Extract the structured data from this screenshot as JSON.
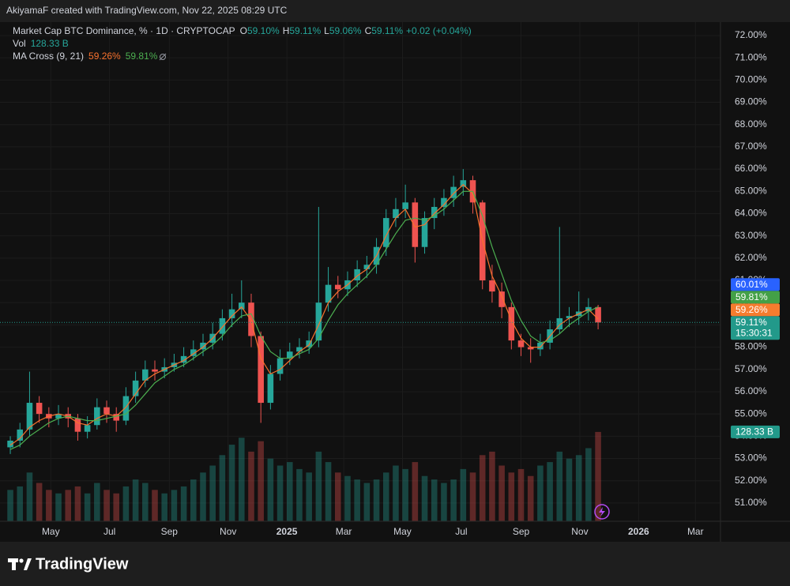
{
  "header": {
    "text": "AkiyamaF created with TradingView.com, Nov 22, 2025 08:29 UTC"
  },
  "chart_data": {
    "type": "candlestick",
    "legend": {
      "symbol": "Market Cap BTC Dominance, % · 1D · CRYPTOCAP",
      "ohlc": [
        {
          "key": "O",
          "value": "59.10%"
        },
        {
          "key": "H",
          "value": "59.11%"
        },
        {
          "key": "L",
          "value": "59.06%"
        },
        {
          "key": "C",
          "value": "59.11%"
        }
      ],
      "change": "+0.02 (+0.04%)",
      "vol_label": "Vol",
      "vol_value": "128.33 B",
      "ma_label": "MA Cross (9, 21)",
      "ma_values": [
        "59.26%",
        "59.81%"
      ]
    },
    "open": [
      53.5,
      53.8,
      54.3,
      55.5,
      55.0,
      54.8,
      55.0,
      54.8,
      54.2,
      54.5,
      55.3,
      55.0,
      54.7,
      55.8,
      56.5,
      57.0,
      56.9,
      57.1,
      57.3,
      57.6,
      57.9,
      58.2,
      58.6,
      59.3,
      59.7,
      60.0,
      58.5,
      55.5,
      56.8,
      57.5,
      57.8,
      58.0,
      58.3,
      60.0,
      60.8,
      60.6,
      61.0,
      61.5,
      61.7,
      62.5,
      63.8,
      64.2,
      64.5,
      62.5,
      63.8,
      64.3,
      64.7,
      65.2,
      65.5,
      64.5,
      61.0,
      60.5,
      59.8,
      58.3,
      58.0,
      57.9,
      58.2,
      58.8,
      59.3,
      59.4,
      59.6,
      59.8
    ],
    "high": [
      54.0,
      54.6,
      56.9,
      55.8,
      55.3,
      55.4,
      55.3,
      55.0,
      54.9,
      55.7,
      55.6,
      55.3,
      56.2,
      56.9,
      57.4,
      57.4,
      57.5,
      57.7,
      58.0,
      58.3,
      58.6,
      59.1,
      59.7,
      60.4,
      61.0,
      60.4,
      58.7,
      57.2,
      57.9,
      58.2,
      58.4,
      58.7,
      64.3,
      61.6,
      61.2,
      61.4,
      61.9,
      62.1,
      62.9,
      64.2,
      64.7,
      65.3,
      64.7,
      64.1,
      64.7,
      65.1,
      65.7,
      66.0,
      65.7,
      64.6,
      61.7,
      60.9,
      60.0,
      58.6,
      58.4,
      58.6,
      59.2,
      63.4,
      59.8,
      60.5,
      60.2,
      59.9
    ],
    "low": [
      53.2,
      53.5,
      54.0,
      54.6,
      54.4,
      54.5,
      54.4,
      53.8,
      53.9,
      54.3,
      54.6,
      54.2,
      54.5,
      55.5,
      56.2,
      56.5,
      56.6,
      56.9,
      57.1,
      57.4,
      57.6,
      57.9,
      58.3,
      58.9,
      59.3,
      58.0,
      54.6,
      55.2,
      56.5,
      57.2,
      57.5,
      57.7,
      58.0,
      59.6,
      60.2,
      60.3,
      60.7,
      61.1,
      61.3,
      62.1,
      63.4,
      63.8,
      61.8,
      62.2,
      63.3,
      63.9,
      64.3,
      64.8,
      64.0,
      60.6,
      60.0,
      59.3,
      57.9,
      57.6,
      57.3,
      57.6,
      57.9,
      58.6,
      58.9,
      59.0,
      59.2,
      58.8
    ],
    "close": [
      53.8,
      54.3,
      55.5,
      55.0,
      54.8,
      55.0,
      54.8,
      54.2,
      54.5,
      55.3,
      55.0,
      54.7,
      55.8,
      56.5,
      57.0,
      56.9,
      57.1,
      57.3,
      57.6,
      57.9,
      58.2,
      58.6,
      59.3,
      59.7,
      60.0,
      58.5,
      55.5,
      56.8,
      57.5,
      57.8,
      58.0,
      58.3,
      60.0,
      60.8,
      60.6,
      61.0,
      61.5,
      61.7,
      62.5,
      63.8,
      64.2,
      64.5,
      62.5,
      63.8,
      64.3,
      64.7,
      65.2,
      65.5,
      64.5,
      61.0,
      60.5,
      59.8,
      58.3,
      58.0,
      57.9,
      58.2,
      58.8,
      59.3,
      59.4,
      59.6,
      59.8,
      59.11
    ],
    "up_color": "#26a69a",
    "down_color": "#ef5350",
    "volume": [
      45,
      50,
      70,
      55,
      45,
      40,
      45,
      50,
      40,
      55,
      45,
      40,
      50,
      60,
      55,
      45,
      40,
      45,
      50,
      60,
      70,
      80,
      95,
      110,
      120,
      100,
      115,
      90,
      80,
      85,
      75,
      70,
      100,
      85,
      70,
      65,
      60,
      55,
      60,
      70,
      80,
      75,
      85,
      65,
      60,
      55,
      60,
      75,
      70,
      95,
      100,
      80,
      70,
      75,
      65,
      80,
      85,
      100,
      90,
      95,
      105,
      128.33
    ],
    "volume_lim": [
      0,
      160
    ],
    "ma_lines": [
      {
        "color": "#f7712d",
        "values": [
          53.6,
          53.9,
          54.4,
          54.7,
          54.9,
          55.0,
          54.9,
          54.6,
          54.5,
          54.8,
          55.0,
          54.9,
          55.3,
          55.9,
          56.5,
          56.8,
          57.0,
          57.2,
          57.4,
          57.7,
          58.0,
          58.4,
          58.9,
          59.4,
          59.8,
          59.2,
          57.5,
          56.8,
          57.0,
          57.4,
          57.8,
          58.1,
          59.0,
          60.0,
          60.5,
          60.8,
          61.2,
          61.5,
          62.1,
          63.0,
          63.8,
          64.2,
          63.4,
          63.5,
          64.0,
          64.4,
          64.9,
          65.3,
          64.9,
          62.8,
          61.2,
          60.3,
          59.2,
          58.4,
          58.0,
          58.0,
          58.5,
          59.0,
          59.3,
          59.5,
          59.7,
          59.26
        ]
      },
      {
        "color": "#4caf50",
        "values": [
          53.4,
          53.6,
          54.0,
          54.3,
          54.6,
          54.8,
          54.9,
          54.8,
          54.7,
          54.7,
          54.8,
          54.9,
          55.0,
          55.4,
          55.9,
          56.4,
          56.7,
          57.0,
          57.2,
          57.5,
          57.8,
          58.1,
          58.5,
          59.0,
          59.4,
          59.5,
          58.5,
          57.8,
          57.5,
          57.5,
          57.7,
          57.9,
          58.4,
          59.2,
          59.9,
          60.4,
          60.8,
          61.2,
          61.7,
          62.4,
          63.1,
          63.7,
          63.8,
          63.7,
          63.9,
          64.2,
          64.6,
          65.0,
          65.0,
          63.9,
          62.5,
          61.3,
          60.1,
          59.2,
          58.5,
          58.2,
          58.3,
          58.6,
          59.0,
          59.3,
          59.6,
          59.81
        ]
      }
    ],
    "ylim": [
      50.18,
      72.53
    ],
    "yticks": [
      {
        "value": 51,
        "label": "51.00%"
      },
      {
        "value": 52,
        "label": "52.00%"
      },
      {
        "value": 53,
        "label": "53.00%"
      },
      {
        "value": 54,
        "label": "54.00%"
      },
      {
        "value": 55,
        "label": "55.00%"
      },
      {
        "value": 56,
        "label": "56.00%"
      },
      {
        "value": 57,
        "label": "57.00%"
      },
      {
        "value": 58,
        "label": "58.00%"
      },
      {
        "value": 59,
        "label": "59.00%"
      },
      {
        "value": 60,
        "label": "60.00%"
      },
      {
        "value": 61,
        "label": "61.00%"
      },
      {
        "value": 62,
        "label": "62.00%"
      },
      {
        "value": 63,
        "label": "63.00%"
      },
      {
        "value": 64,
        "label": "64.00%"
      },
      {
        "value": 65,
        "label": "65.00%"
      },
      {
        "value": 66,
        "label": "66.00%"
      },
      {
        "value": 67,
        "label": "67.00%"
      },
      {
        "value": 68,
        "label": "68.00%"
      },
      {
        "value": 69,
        "label": "69.00%"
      },
      {
        "value": 70,
        "label": "70.00%"
      },
      {
        "value": 71,
        "label": "71.00%"
      },
      {
        "value": 72,
        "label": "72.00%"
      }
    ],
    "xlim": [
      -0.25,
      73.7
    ],
    "xticks": [
      {
        "value": 4.2,
        "label": "May"
      },
      {
        "value": 10.3,
        "label": "Jul"
      },
      {
        "value": 16.5,
        "label": "Sep"
      },
      {
        "value": 22.6,
        "label": "Nov"
      },
      {
        "value": 28.7,
        "label": "2025"
      },
      {
        "value": 34.6,
        "label": "Mar"
      },
      {
        "value": 40.7,
        "label": "May"
      },
      {
        "value": 46.8,
        "label": "Jul"
      },
      {
        "value": 53.0,
        "label": "Sep"
      },
      {
        "value": 59.1,
        "label": "Nov"
      },
      {
        "value": 65.2,
        "label": "2026"
      },
      {
        "value": 71.1,
        "label": "Mar"
      }
    ],
    "grid": true,
    "price_tags": [
      {
        "value": 60.01,
        "label": "60.01%",
        "color": "#2962ff"
      },
      {
        "value": 59.81,
        "label": "59.81%",
        "color": "#43a047"
      },
      {
        "value": 59.26,
        "label": "59.26%",
        "color": "#f57c2e"
      },
      {
        "value": 59.11,
        "label": "59.11%",
        "sublabel": "15:30:31",
        "color": "#22998a"
      }
    ],
    "volume_tag": {
      "value": 128.33,
      "label": "128.33 B",
      "color": "#22998a"
    }
  },
  "footer": {
    "brand": "TradingView"
  }
}
